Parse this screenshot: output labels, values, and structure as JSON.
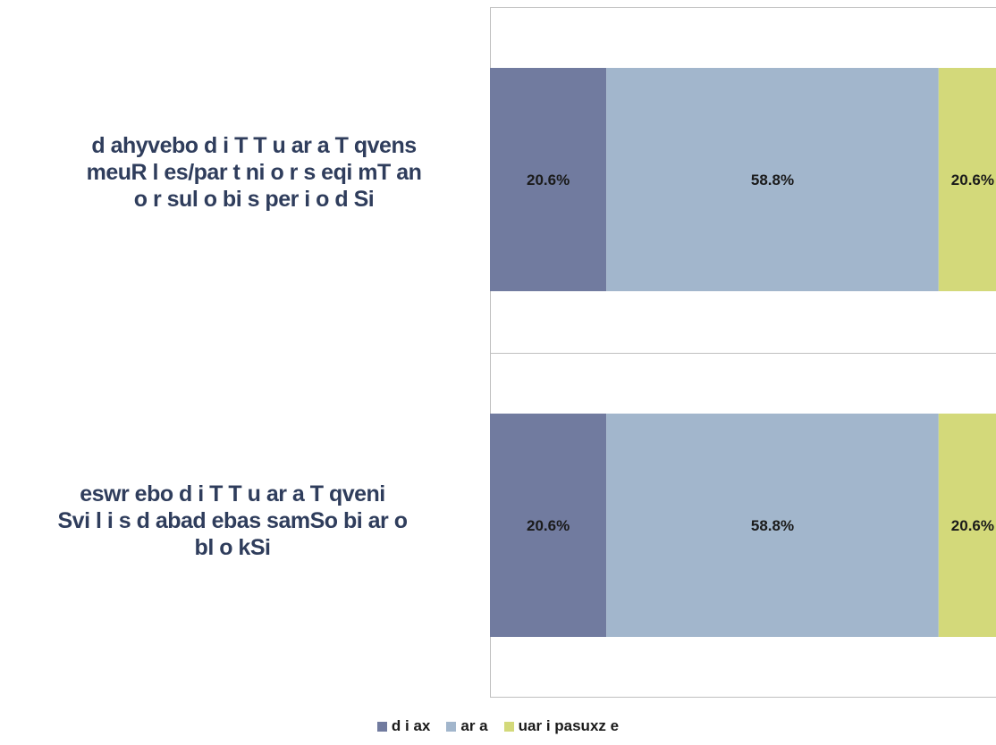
{
  "chart_data": {
    "type": "bar",
    "orientation": "horizontal",
    "stacked": true,
    "percent_stacked": true,
    "categories": [
      "d ahyvebo d i T  T u ar  a T qvens meuR l  es/par t ni o r  s eqi mT an o r  sul  o bi s per  i o d Si",
      "eswr  ebo  d i T  T u ar  a T qveni Svi l  i s d abad ebas samSo bi ar  o bl   o kSi"
    ],
    "category_lines": [
      [
        "d ahyvebo  d i T   T u ar  a T qvens",
        "meuR l   es/par  t ni o r  s eqi mT an",
        "o r  sul   o bi s per  i o d Si"
      ],
      [
        "eswr  ebo  d i T   T u ar  a T qveni",
        "Svi l   i s d abad ebas samSo bi ar  o",
        "bl   o kSi"
      ]
    ],
    "series": [
      {
        "name": "d i ax",
        "values": [
          20.6,
          20.6
        ],
        "labels": [
          "20.6%",
          "20.6%"
        ],
        "color": "#717b9f"
      },
      {
        "name": "ar  a",
        "values": [
          58.8,
          58.8
        ],
        "labels": [
          "58.8%",
          "58.8%"
        ],
        "color": "#a2b6cc"
      },
      {
        "name": "uar  i  pasuxz e",
        "values": [
          20.6,
          20.6
        ],
        "labels": [
          "20.6%",
          "20.6%"
        ],
        "color": "#d3d97a"
      }
    ],
    "xlim": [
      0,
      100
    ],
    "grid": false,
    "legend_position": "bottom"
  }
}
